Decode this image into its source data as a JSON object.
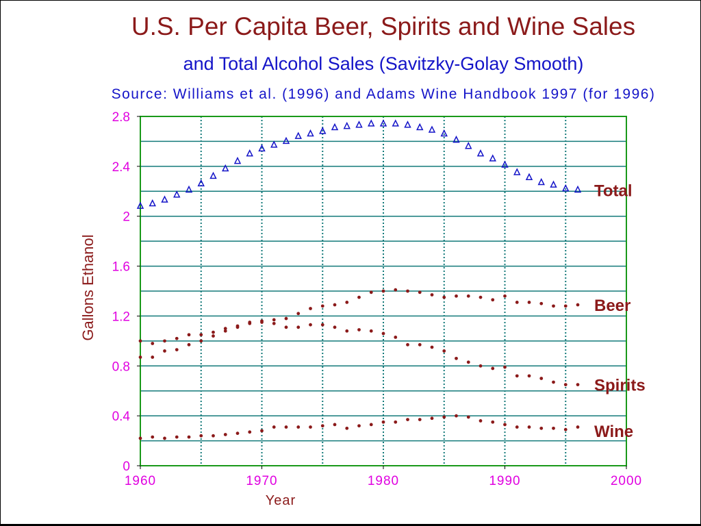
{
  "chart_data": {
    "type": "scatter",
    "title": "U.S. Per Capita Beer, Spirits and Wine Sales",
    "subtitle": "and Total Alcohol Sales (Savitzky-Golay Smooth)",
    "source": "Source:  Williams et al. (1996) and Adams Wine Handbook 1997 (for 1996)",
    "xlabel": "Year",
    "ylabel": "Gallons Ethanol",
    "xlim": [
      1960,
      2000
    ],
    "ylim": [
      0,
      2.8
    ],
    "x_ticks": [
      "1960",
      "1970",
      "1980",
      "1990",
      "2000"
    ],
    "y_ticks": [
      "0",
      "0.4",
      "0.8",
      "1.2",
      "1.6",
      "2",
      "2.4",
      "2.8"
    ],
    "grid": true,
    "x": [
      1960,
      1961,
      1962,
      1963,
      1964,
      1965,
      1966,
      1967,
      1968,
      1969,
      1970,
      1971,
      1972,
      1973,
      1974,
      1975,
      1976,
      1977,
      1978,
      1979,
      1980,
      1981,
      1982,
      1983,
      1984,
      1985,
      1986,
      1987,
      1988,
      1989,
      1990,
      1991,
      1992,
      1993,
      1994,
      1995,
      1996
    ],
    "series": [
      {
        "name": "Total",
        "marker": "triangle",
        "color": "#1414c8",
        "values": [
          2.08,
          2.1,
          2.13,
          2.17,
          2.21,
          2.26,
          2.32,
          2.38,
          2.44,
          2.5,
          2.54,
          2.57,
          2.6,
          2.64,
          2.66,
          2.68,
          2.71,
          2.72,
          2.73,
          2.74,
          2.74,
          2.74,
          2.73,
          2.71,
          2.69,
          2.66,
          2.61,
          2.56,
          2.5,
          2.46,
          2.41,
          2.35,
          2.31,
          2.27,
          2.25,
          2.22,
          2.21
        ]
      },
      {
        "name": "Beer",
        "marker": "dot",
        "color": "#8b1a1a",
        "values": [
          0.87,
          0.87,
          0.92,
          0.93,
          0.97,
          1.0,
          1.04,
          1.08,
          1.11,
          1.14,
          1.16,
          1.17,
          1.18,
          1.22,
          1.26,
          1.28,
          1.29,
          1.31,
          1.35,
          1.39,
          1.4,
          1.41,
          1.4,
          1.39,
          1.37,
          1.35,
          1.36,
          1.36,
          1.35,
          1.33,
          1.36,
          1.31,
          1.31,
          1.3,
          1.28,
          1.28,
          1.29
        ]
      },
      {
        "name": "Spirits",
        "marker": "dot",
        "color": "#8b1a1a",
        "values": [
          1.0,
          0.98,
          1.0,
          1.02,
          1.05,
          1.05,
          1.07,
          1.1,
          1.12,
          1.15,
          1.15,
          1.14,
          1.11,
          1.11,
          1.13,
          1.13,
          1.11,
          1.08,
          1.09,
          1.08,
          1.06,
          1.03,
          0.97,
          0.97,
          0.95,
          0.92,
          0.86,
          0.83,
          0.8,
          0.78,
          0.79,
          0.72,
          0.72,
          0.7,
          0.67,
          0.65,
          0.65
        ]
      },
      {
        "name": "Wine",
        "marker": "dot",
        "color": "#8b1a1a",
        "values": [
          0.22,
          0.23,
          0.22,
          0.23,
          0.23,
          0.24,
          0.24,
          0.25,
          0.26,
          0.27,
          0.28,
          0.31,
          0.31,
          0.31,
          0.31,
          0.32,
          0.33,
          0.3,
          0.32,
          0.33,
          0.35,
          0.35,
          0.37,
          0.37,
          0.38,
          0.39,
          0.4,
          0.39,
          0.36,
          0.35,
          0.33,
          0.31,
          0.31,
          0.3,
          0.3,
          0.29,
          0.31
        ]
      }
    ],
    "series_labels": [
      "Total",
      "Beer",
      "Spirits",
      "Wine"
    ],
    "colors": {
      "title": "#8b1a1a",
      "subtitle": "#1414c8",
      "tick": "#e000e0",
      "grid": "#137a7a",
      "frame": "#199919",
      "label": "#8b1a1a"
    }
  }
}
